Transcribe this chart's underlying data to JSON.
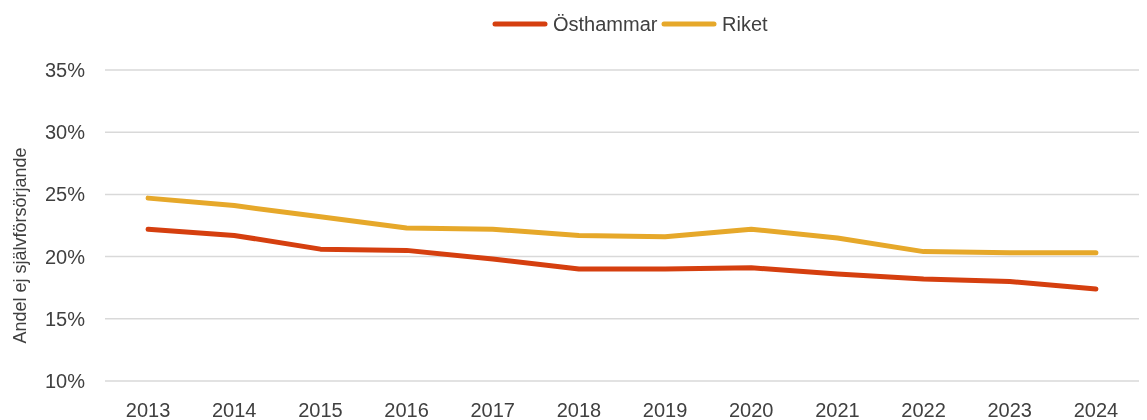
{
  "chart_data": {
    "type": "line",
    "ylabel": "Andel ej självförsörjande",
    "categories": [
      "2013",
      "2014",
      "2015",
      "2016",
      "2017",
      "2018",
      "2019",
      "2020",
      "2021",
      "2022",
      "2023",
      "2024"
    ],
    "series": [
      {
        "name": "Östhammar",
        "color": "#d53f0f",
        "values": [
          22.2,
          21.7,
          20.6,
          20.5,
          19.8,
          19.0,
          19.0,
          19.1,
          18.6,
          18.2,
          18.0,
          17.4
        ]
      },
      {
        "name": "Riket",
        "color": "#e6a82a",
        "values": [
          24.7,
          24.1,
          23.2,
          22.3,
          22.2,
          21.7,
          21.6,
          22.2,
          21.5,
          20.4,
          20.3,
          20.3
        ]
      }
    ],
    "ylim": [
      10,
      35
    ],
    "yticks": [
      {
        "value": 10,
        "label": "10%"
      },
      {
        "value": 15,
        "label": "15%"
      },
      {
        "value": 20,
        "label": "20%"
      },
      {
        "value": 25,
        "label": "25%"
      },
      {
        "value": 30,
        "label": "30%"
      },
      {
        "value": 35,
        "label": "35%"
      }
    ],
    "grid": "y",
    "legend": "top",
    "marker": "none",
    "line_style": "solid"
  }
}
